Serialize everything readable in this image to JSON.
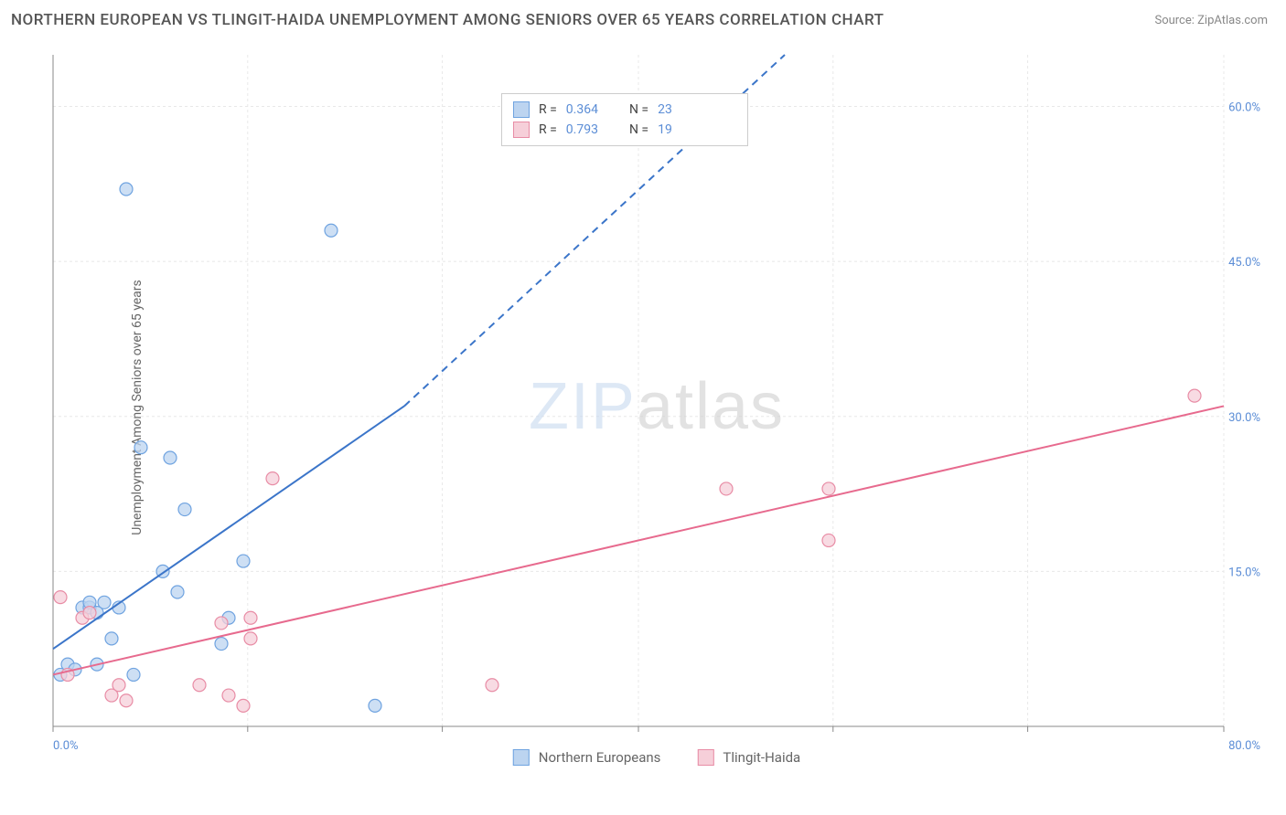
{
  "header": {
    "title": "NORTHERN EUROPEAN VS TLINGIT-HAIDA UNEMPLOYMENT AMONG SENIORS OVER 65 YEARS CORRELATION CHART",
    "source_prefix": "Source: ",
    "source_link": "ZipAtlas.com"
  },
  "ylabel": "Unemployment Among Seniors over 65 years",
  "watermark": {
    "zip": "ZIP",
    "atlas": "atlas"
  },
  "chart": {
    "type": "scatter",
    "background_color": "#ffffff",
    "grid_color": "#e8e8e8",
    "axis_text_color": "#5b8dd6",
    "xlim": [
      0,
      80
    ],
    "ylim": [
      0,
      65
    ],
    "xtick_min_label": "0.0%",
    "xtick_max_label": "80.0%",
    "xtick_positions": [
      0,
      13.3,
      26.6,
      40,
      53.3,
      66.6,
      80
    ],
    "ytick_labels": [
      "15.0%",
      "30.0%",
      "45.0%",
      "60.0%"
    ],
    "ytick_values": [
      15,
      30,
      45,
      60
    ],
    "series": [
      {
        "name": "Northern Europeans",
        "color_fill": "#bcd4f0",
        "color_stroke": "#6fa3e0",
        "marker_radius": 7,
        "points": [
          [
            0.5,
            5
          ],
          [
            1,
            6
          ],
          [
            1.5,
            5.5
          ],
          [
            2,
            11.5
          ],
          [
            2.5,
            11.5
          ],
          [
            2.5,
            12
          ],
          [
            3,
            6
          ],
          [
            3.5,
            12
          ],
          [
            4,
            8.5
          ],
          [
            5,
            52
          ],
          [
            5.5,
            5
          ],
          [
            6,
            27
          ],
          [
            7.5,
            15
          ],
          [
            8,
            26
          ],
          [
            8.5,
            13
          ],
          [
            9,
            21
          ],
          [
            11.5,
            8
          ],
          [
            12,
            10.5
          ],
          [
            13,
            16
          ],
          [
            19,
            48
          ],
          [
            22,
            2
          ],
          [
            3,
            11
          ],
          [
            4.5,
            11.5
          ]
        ],
        "trend": {
          "x1": 0,
          "y1": 7.5,
          "x2": 24,
          "y2": 31,
          "color": "#3b75c9",
          "dash_x1": 24,
          "dash_y1": 31,
          "dash_x2": 50,
          "dash_y2": 65,
          "width": 2
        }
      },
      {
        "name": "Tlingit-Haida",
        "color_fill": "#f6cfd9",
        "color_stroke": "#e88ca5",
        "marker_radius": 7,
        "points": [
          [
            0.5,
            12.5
          ],
          [
            1,
            5
          ],
          [
            2,
            10.5
          ],
          [
            2.5,
            11
          ],
          [
            4,
            3
          ],
          [
            4.5,
            4
          ],
          [
            5,
            2.5
          ],
          [
            10,
            4
          ],
          [
            11.5,
            10
          ],
          [
            12,
            3
          ],
          [
            13,
            2
          ],
          [
            13.5,
            8.5
          ],
          [
            13.5,
            10.5
          ],
          [
            15,
            24
          ],
          [
            30,
            4
          ],
          [
            46,
            23
          ],
          [
            53,
            23
          ],
          [
            53,
            18
          ],
          [
            78,
            32
          ]
        ],
        "trend": {
          "x1": 0,
          "y1": 5,
          "x2": 80,
          "y2": 31,
          "color": "#e76a8e",
          "width": 2
        }
      }
    ],
    "stats_legend": [
      {
        "swatch_fill": "#bcd4f0",
        "swatch_stroke": "#6fa3e0",
        "r": "0.364",
        "n": "23"
      },
      {
        "swatch_fill": "#f6cfd9",
        "swatch_stroke": "#e88ca5",
        "r": "0.793",
        "n": "19"
      }
    ],
    "stats_labels": {
      "r": "R =",
      "n": "N ="
    },
    "bottom_legend": [
      {
        "swatch_fill": "#bcd4f0",
        "swatch_stroke": "#6fa3e0",
        "label": "Northern Europeans"
      },
      {
        "swatch_fill": "#f6cfd9",
        "swatch_stroke": "#e88ca5",
        "label": "Tlingit-Haida"
      }
    ]
  }
}
